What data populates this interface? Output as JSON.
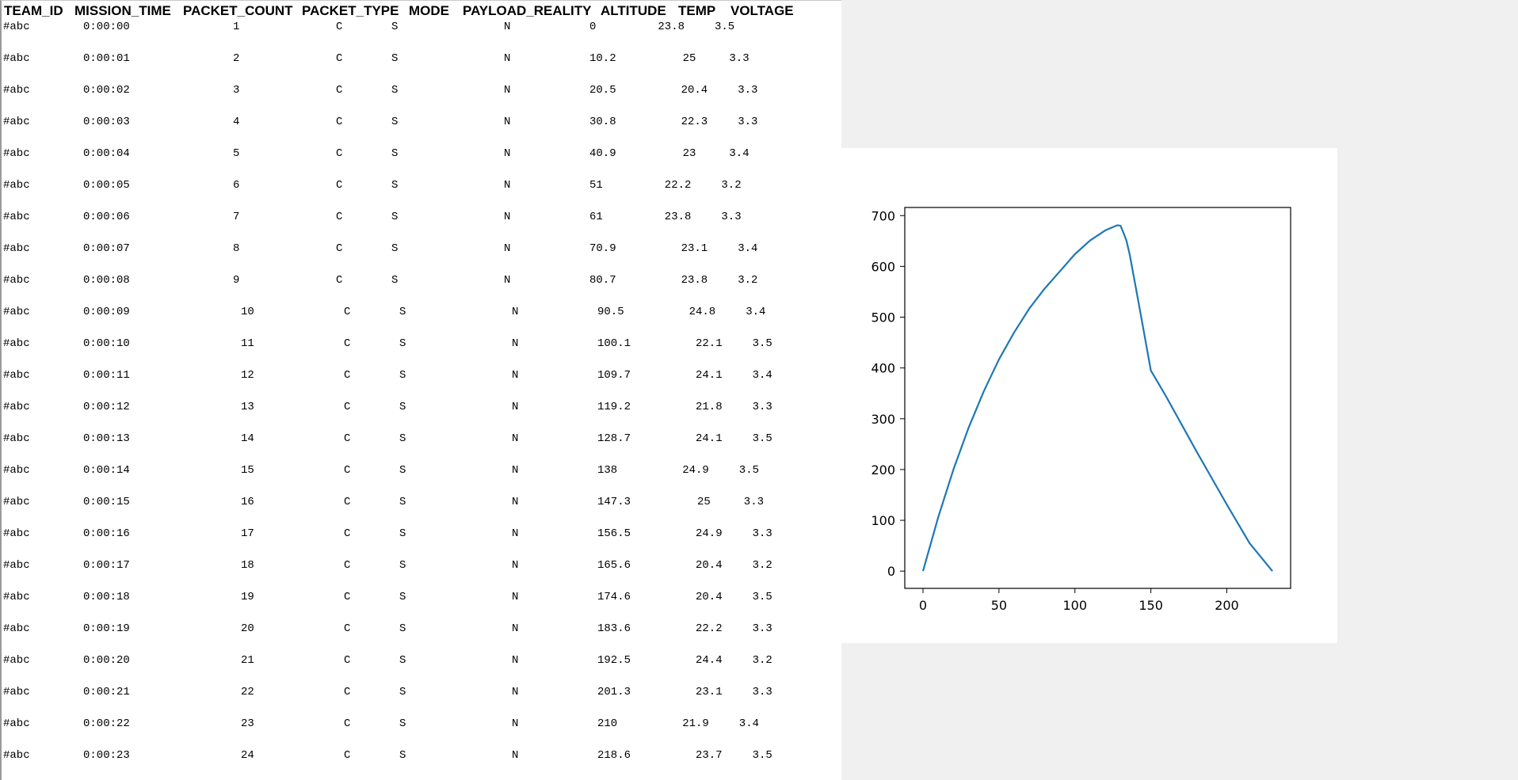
{
  "telemetry": {
    "headers": [
      "TEAM_ID",
      "MISSION_TIME",
      "PACKET_COUNT",
      "PACKET_TYPE",
      "MODE",
      "PAYLOAD_REALITY",
      "ALTITUDE",
      "TEMP",
      "VOLTAGE"
    ],
    "rows": [
      [
        "#abc",
        "0:00:00",
        "1",
        "C",
        "S",
        "N",
        "0",
        "23.8",
        "3.5"
      ],
      [
        "#abc",
        "0:00:01",
        "2",
        "C",
        "S",
        "N",
        "10.2",
        "25",
        "3.3"
      ],
      [
        "#abc",
        "0:00:02",
        "3",
        "C",
        "S",
        "N",
        "20.5",
        "20.4",
        "3.3"
      ],
      [
        "#abc",
        "0:00:03",
        "4",
        "C",
        "S",
        "N",
        "30.8",
        "22.3",
        "3.3"
      ],
      [
        "#abc",
        "0:00:04",
        "5",
        "C",
        "S",
        "N",
        "40.9",
        "23",
        "3.4"
      ],
      [
        "#abc",
        "0:00:05",
        "6",
        "C",
        "S",
        "N",
        "51",
        "22.2",
        "3.2"
      ],
      [
        "#abc",
        "0:00:06",
        "7",
        "C",
        "S",
        "N",
        "61",
        "23.8",
        "3.3"
      ],
      [
        "#abc",
        "0:00:07",
        "8",
        "C",
        "S",
        "N",
        "70.9",
        "23.1",
        "3.4"
      ],
      [
        "#abc",
        "0:00:08",
        "9",
        "C",
        "S",
        "N",
        "80.7",
        "23.8",
        "3.2"
      ],
      [
        "#abc",
        "0:00:09",
        "10",
        "C",
        "S",
        "N",
        "90.5",
        "24.8",
        "3.4"
      ],
      [
        "#abc",
        "0:00:10",
        "11",
        "C",
        "S",
        "N",
        "100.1",
        "22.1",
        "3.5"
      ],
      [
        "#abc",
        "0:00:11",
        "12",
        "C",
        "S",
        "N",
        "109.7",
        "24.1",
        "3.4"
      ],
      [
        "#abc",
        "0:00:12",
        "13",
        "C",
        "S",
        "N",
        "119.2",
        "21.8",
        "3.3"
      ],
      [
        "#abc",
        "0:00:13",
        "14",
        "C",
        "S",
        "N",
        "128.7",
        "24.1",
        "3.5"
      ],
      [
        "#abc",
        "0:00:14",
        "15",
        "C",
        "S",
        "N",
        "138",
        "24.9",
        "3.5"
      ],
      [
        "#abc",
        "0:00:15",
        "16",
        "C",
        "S",
        "N",
        "147.3",
        "25",
        "3.3"
      ],
      [
        "#abc",
        "0:00:16",
        "17",
        "C",
        "S",
        "N",
        "156.5",
        "24.9",
        "3.3"
      ],
      [
        "#abc",
        "0:00:17",
        "18",
        "C",
        "S",
        "N",
        "165.6",
        "20.4",
        "3.2"
      ],
      [
        "#abc",
        "0:00:18",
        "19",
        "C",
        "S",
        "N",
        "174.6",
        "20.4",
        "3.5"
      ],
      [
        "#abc",
        "0:00:19",
        "20",
        "C",
        "S",
        "N",
        "183.6",
        "22.2",
        "3.3"
      ],
      [
        "#abc",
        "0:00:20",
        "21",
        "C",
        "S",
        "N",
        "192.5",
        "24.4",
        "3.2"
      ],
      [
        "#abc",
        "0:00:21",
        "22",
        "C",
        "S",
        "N",
        "201.3",
        "23.1",
        "3.3"
      ],
      [
        "#abc",
        "0:00:22",
        "23",
        "C",
        "S",
        "N",
        "210",
        "21.9",
        "3.4"
      ],
      [
        "#abc",
        "0:00:23",
        "24",
        "C",
        "S",
        "N",
        "218.6",
        "23.7",
        "3.5"
      ]
    ]
  },
  "chart_data": {
    "type": "line",
    "title": "",
    "xlabel": "",
    "ylabel": "",
    "xlim": [
      -12,
      242
    ],
    "ylim": [
      -34,
      716
    ],
    "xticks": [
      0,
      50,
      100,
      150,
      200
    ],
    "yticks": [
      0,
      100,
      200,
      300,
      400,
      500,
      600,
      700
    ],
    "grid": false,
    "series": [
      {
        "color": "#1f77b4",
        "x": [
          0,
          10,
          20,
          30,
          40,
          50,
          60,
          70,
          80,
          90,
          100,
          110,
          120,
          128,
          130,
          132,
          134,
          136,
          140,
          145,
          150,
          152,
          160,
          180,
          200,
          215,
          230
        ],
        "y": [
          0,
          106,
          200,
          282,
          354,
          417,
          470,
          517,
          556,
          590,
          624,
          651,
          671,
          681,
          680,
          666,
          650,
          624,
          560,
          478,
          395,
          385,
          344,
          236,
          131,
          55,
          0
        ]
      }
    ]
  }
}
